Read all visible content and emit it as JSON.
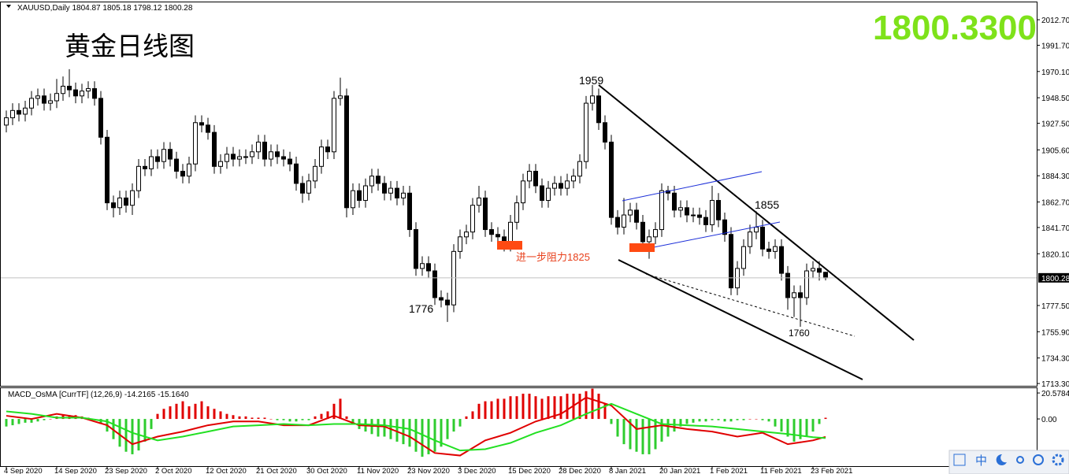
{
  "chart_data": [
    {
      "type": "candlestick",
      "title": "XAUUSD,Daily",
      "heading": "黄金日线图",
      "price_banner": "1800.3300",
      "banner_color": "#7ee21a",
      "up_color": "#ffffff",
      "down_color": "#000000",
      "grid": false,
      "categories": [
        "4 Sep 2020",
        null,
        null,
        null,
        null,
        null,
        null,
        null,
        "14 Sep 2020",
        null,
        null,
        null,
        null,
        null,
        null,
        null,
        "23 Sep 2020",
        null,
        null,
        null,
        null,
        null,
        null,
        null,
        "2 Oct 2020",
        null,
        null,
        null,
        null,
        null,
        null,
        null,
        "12 Oct 2020",
        null,
        null,
        null,
        null,
        null,
        null,
        null,
        "21 Oct 2020",
        null,
        null,
        null,
        null,
        null,
        null,
        null,
        "30 Oct 2020",
        null,
        null,
        null,
        null,
        null,
        null,
        null,
        "11 Nov 2020",
        null,
        null,
        null,
        null,
        null,
        null,
        null,
        "23 Nov 2020",
        null,
        null,
        null,
        null,
        null,
        null,
        null,
        "3 Dec 2020",
        null,
        null,
        null,
        null,
        null,
        null,
        null,
        "15 Dec 2020",
        null,
        null,
        null,
        null,
        null,
        null,
        null,
        "28 Dec 2020",
        null,
        null,
        null,
        null,
        null,
        null,
        null,
        "8 Jan 2021",
        null,
        null,
        null,
        null,
        null,
        null,
        null,
        "20 Jan 2021",
        null,
        null,
        null,
        null,
        null,
        null,
        null,
        "1 Feb 2021",
        null,
        null,
        null,
        null,
        null,
        null,
        null,
        "11 Feb 2021",
        null,
        null,
        null,
        null,
        null,
        null,
        null,
        "23 Feb 2021",
        null,
        null
      ],
      "open": [
        1926,
        1932,
        1938,
        1935,
        1940,
        1948,
        1950,
        1944,
        1946,
        1952,
        1958,
        1955,
        1950,
        1954,
        1956,
        1948,
        1916,
        1862,
        1858,
        1866,
        1860,
        1872,
        1892,
        1890,
        1900,
        1896,
        1906,
        1898,
        1888,
        1884,
        1894,
        1928,
        1926,
        1920,
        1892,
        1896,
        1902,
        1898,
        1900,
        1900,
        1904,
        1912,
        1898,
        1904,
        1900,
        1898,
        1894,
        1878,
        1870,
        1880,
        1892,
        1908,
        1904,
        1948,
        1950,
        1858,
        1872,
        1864,
        1876,
        1884,
        1878,
        1870,
        1874,
        1866,
        1870,
        1840,
        1808,
        1812,
        1806,
        1784,
        1782,
        1778,
        1822,
        1834,
        1838,
        1860,
        1866,
        1840,
        1836,
        1834,
        1828,
        1846,
        1862,
        1880,
        1888,
        1876,
        1864,
        1874,
        1878,
        1874,
        1880,
        1884,
        1896,
        1944,
        1950,
        1928,
        1912,
        1850,
        1842,
        1852,
        1856,
        1846,
        1830,
        1834,
        1840,
        1872,
        1870,
        1856,
        1858,
        1852,
        1852,
        1850,
        1844,
        1864,
        1848,
        1836,
        1792,
        1808,
        1826,
        1838,
        1842,
        1824,
        1822,
        1826,
        1804,
        1784,
        1788,
        1784,
        1806,
        1808,
        1804.87
      ],
      "high": [
        1938,
        1944,
        1944,
        1946,
        1954,
        1956,
        1956,
        1952,
        1964,
        1966,
        1972,
        1961,
        1960,
        1962,
        1962,
        1954,
        1922,
        1868,
        1872,
        1872,
        1878,
        1898,
        1898,
        1906,
        1906,
        1912,
        1912,
        1904,
        1894,
        1900,
        1934,
        1934,
        1932,
        1926,
        1902,
        1908,
        1908,
        1906,
        1906,
        1910,
        1918,
        1918,
        1910,
        1910,
        1906,
        1904,
        1900,
        1884,
        1886,
        1898,
        1914,
        1914,
        1954,
        1965,
        1956,
        1878,
        1878,
        1882,
        1890,
        1890,
        1884,
        1880,
        1880,
        1876,
        1876,
        1846,
        1818,
        1818,
        1812,
        1790,
        1788,
        1828,
        1840,
        1844,
        1866,
        1876,
        1872,
        1846,
        1842,
        1840,
        1852,
        1868,
        1886,
        1894,
        1894,
        1882,
        1880,
        1884,
        1884,
        1886,
        1890,
        1902,
        1950,
        1959,
        1956,
        1934,
        1918,
        1856,
        1866,
        1862,
        1862,
        1852,
        1840,
        1846,
        1878,
        1876,
        1876,
        1864,
        1864,
        1858,
        1858,
        1856,
        1876,
        1870,
        1854,
        1842,
        1814,
        1832,
        1844,
        1855,
        1848,
        1830,
        1832,
        1832,
        1810,
        1794,
        1794,
        1812,
        1814,
        1814,
        1805.18
      ],
      "low": [
        1920,
        1926,
        1929,
        1929,
        1934,
        1942,
        1938,
        1938,
        1940,
        1946,
        1949,
        1944,
        1944,
        1948,
        1942,
        1910,
        1856,
        1850,
        1852,
        1854,
        1852,
        1866,
        1884,
        1884,
        1890,
        1890,
        1892,
        1882,
        1878,
        1878,
        1888,
        1920,
        1914,
        1886,
        1886,
        1890,
        1892,
        1892,
        1894,
        1894,
        1898,
        1892,
        1892,
        1894,
        1892,
        1888,
        1872,
        1862,
        1864,
        1874,
        1886,
        1898,
        1898,
        1942,
        1850,
        1852,
        1858,
        1858,
        1870,
        1872,
        1864,
        1864,
        1860,
        1860,
        1834,
        1802,
        1802,
        1800,
        1778,
        1776,
        1764,
        1772,
        1816,
        1828,
        1832,
        1854,
        1834,
        1830,
        1826,
        1822,
        1822,
        1840,
        1856,
        1874,
        1870,
        1858,
        1858,
        1868,
        1868,
        1868,
        1874,
        1878,
        1890,
        1938,
        1922,
        1906,
        1844,
        1836,
        1836,
        1846,
        1840,
        1824,
        1816,
        1828,
        1834,
        1864,
        1850,
        1850,
        1846,
        1846,
        1844,
        1838,
        1838,
        1842,
        1830,
        1786,
        1786,
        1802,
        1820,
        1832,
        1818,
        1816,
        1816,
        1798,
        1774,
        1768,
        1760,
        1778,
        1800,
        1798,
        1798.12
      ],
      "close": [
        1932,
        1938,
        1935,
        1940,
        1948,
        1950,
        1944,
        1946,
        1952,
        1958,
        1955,
        1950,
        1954,
        1956,
        1948,
        1916,
        1862,
        1858,
        1866,
        1860,
        1872,
        1892,
        1890,
        1900,
        1896,
        1906,
        1898,
        1888,
        1884,
        1894,
        1928,
        1926,
        1920,
        1892,
        1896,
        1902,
        1898,
        1900,
        1900,
        1904,
        1912,
        1898,
        1904,
        1900,
        1898,
        1894,
        1878,
        1870,
        1880,
        1892,
        1908,
        1904,
        1948,
        1950,
        1858,
        1872,
        1864,
        1876,
        1884,
        1878,
        1870,
        1874,
        1866,
        1870,
        1840,
        1808,
        1812,
        1806,
        1784,
        1782,
        1778,
        1822,
        1834,
        1838,
        1860,
        1866,
        1840,
        1836,
        1834,
        1828,
        1846,
        1862,
        1880,
        1888,
        1876,
        1864,
        1874,
        1878,
        1874,
        1880,
        1884,
        1896,
        1944,
        1950,
        1928,
        1912,
        1850,
        1842,
        1852,
        1856,
        1846,
        1830,
        1834,
        1840,
        1872,
        1870,
        1856,
        1858,
        1852,
        1852,
        1850,
        1844,
        1864,
        1848,
        1836,
        1792,
        1808,
        1826,
        1838,
        1842,
        1824,
        1822,
        1826,
        1804,
        1784,
        1788,
        1784,
        1806,
        1808,
        1804.87,
        1800.28
      ],
      "ylim": [
        1711.4,
        2027.0
      ],
      "yticks": [
        {
          "value": 2012.7,
          "label": "2012.70"
        },
        {
          "value": 1991.7,
          "label": "1991.70"
        },
        {
          "value": 1970.1,
          "label": "1970.10"
        },
        {
          "value": 1948.5,
          "label": "1948.50"
        },
        {
          "value": 1927.5,
          "label": "1927.50"
        },
        {
          "value": 1905.6,
          "label": "1905.60"
        },
        {
          "value": 1884.3,
          "label": "1884.30"
        },
        {
          "value": 1862.7,
          "label": "1862.70"
        },
        {
          "value": 1841.7,
          "label": "1841.70"
        },
        {
          "value": 1820.1,
          "label": "1820.10"
        },
        {
          "value": 1777.5,
          "label": "1777.50"
        },
        {
          "value": 1755.9,
          "label": "1755.90"
        },
        {
          "value": 1734.3,
          "label": "1734.30"
        },
        {
          "value": 1713.3,
          "label": "1713.30"
        }
      ],
      "annotations": [
        "1959",
        "1776",
        "1855",
        "1760",
        "进一步阻力1825"
      ]
    },
    {
      "type": "macd",
      "title": "MACD_OsMA [CurrTF] (12,26,9)",
      "histogram": [
        -6,
        -5,
        -4,
        -3,
        -3,
        -2,
        -1,
        0,
        2,
        3,
        3,
        3,
        2,
        1,
        0,
        -4,
        -10,
        -16,
        -22,
        -26,
        -28,
        -25,
        -18,
        -8,
        4,
        8,
        10,
        12,
        14,
        10,
        12,
        14,
        10,
        8,
        6,
        4,
        3,
        2,
        2,
        1,
        1,
        1,
        0,
        -1,
        -1,
        -2,
        -2,
        -1,
        -1,
        2,
        4,
        6,
        12,
        16,
        2,
        -4,
        -8,
        -10,
        -12,
        -14,
        -14,
        -16,
        -18,
        -20,
        -22,
        -26,
        -30,
        -28,
        -26,
        -22,
        -16,
        -10,
        -6,
        2,
        6,
        12,
        14,
        14,
        16,
        16,
        18,
        18,
        20,
        20,
        18,
        16,
        18,
        18,
        18,
        20,
        20,
        20,
        22,
        24,
        20,
        12,
        -4,
        -14,
        -20,
        -24,
        -26,
        -28,
        -28,
        -24,
        -18,
        -14,
        -10,
        -6,
        -4,
        -3,
        -2,
        -2,
        -1,
        -1,
        -2,
        -2,
        -1,
        -1,
        0,
        0,
        -1,
        -2,
        -6,
        -10,
        -14,
        -18,
        -16,
        -14,
        -10,
        -4,
        0.9475
      ],
      "up_color": "#e00000",
      "down_color": "#2ecc2e",
      "series": [
        {
          "color": "#e00000",
          "x": [
            0,
            4,
            8,
            12,
            16,
            20,
            24,
            28,
            32,
            36,
            40,
            44,
            48,
            52,
            56,
            60,
            64,
            68,
            72,
            76,
            80,
            84,
            88,
            92,
            96,
            100,
            104,
            108,
            112,
            116,
            120,
            124,
            128,
            130
          ],
          "values": [
            2.5,
            0,
            4,
            1,
            -5,
            -20,
            -14,
            -10,
            -5,
            -2,
            -2,
            -5,
            -5,
            2.5,
            -5,
            -6,
            -14,
            -27,
            -29,
            -17,
            -11,
            -2,
            4,
            17,
            10.6,
            -8,
            -5,
            -8,
            -10,
            -14,
            -11,
            -20,
            -17,
            -14.2165
          ]
        },
        {
          "color": "#22e022",
          "x": [
            0,
            4,
            8,
            12,
            16,
            20,
            24,
            28,
            32,
            36,
            40,
            44,
            48,
            52,
            56,
            60,
            64,
            68,
            72,
            76,
            80,
            84,
            88,
            92,
            96,
            100,
            104,
            108,
            112,
            116,
            120,
            124,
            128,
            130
          ],
          "values": [
            6,
            4,
            1,
            1,
            -2,
            -11,
            -17,
            -14,
            -10,
            -6,
            -5,
            -4,
            -5,
            -4,
            -4,
            -5,
            -8,
            -17,
            -25,
            -24,
            -19,
            -11,
            -5,
            4,
            12,
            4,
            -4,
            -5,
            -6,
            -8,
            -10,
            -12,
            -14.5,
            -15.164
          ],
          "readout_label": "-15.1640"
        }
      ],
      "ylim": [
        -37.4,
        25
      ],
      "yticks": [
        20.5784,
        {
          "value": 0,
          "label": "0.00"
        }
      ]
    }
  ],
  "toolbar": {
    "ime": "中"
  }
}
